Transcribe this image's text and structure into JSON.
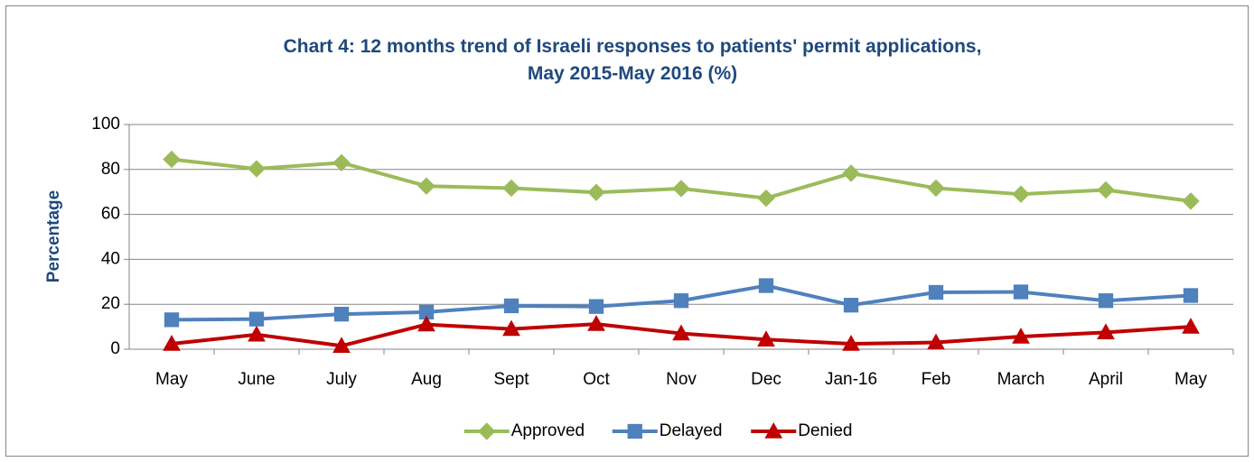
{
  "chart_data": {
    "type": "line",
    "title": "Chart 4: 12 months trend of Israeli responses to patients' permit applications, May 2015-May 2016 (%)",
    "y_label": "Percentage",
    "categories": [
      "May",
      "June",
      "July",
      "Aug",
      "Sept",
      "Oct",
      "Nov",
      "Dec",
      "Jan-16",
      "Feb",
      "March",
      "April",
      "May"
    ],
    "series": [
      {
        "name": "Approved",
        "color": "#9bbb59",
        "marker": "diamond",
        "values": [
          84.5,
          80.3,
          83,
          72.6,
          71.7,
          69.8,
          71.5,
          67.2,
          78.3,
          71.7,
          69,
          70.9,
          65.9
        ]
      },
      {
        "name": "Delayed",
        "color": "#4f81bd",
        "marker": "square",
        "values": [
          13.1,
          13.4,
          15.6,
          16.5,
          19.3,
          19,
          21.6,
          28.3,
          19.6,
          25.3,
          25.5,
          21.6,
          23.9
        ]
      },
      {
        "name": "Denied",
        "color": "#c00000",
        "marker": "triangle",
        "values": [
          2.4,
          6.5,
          1.5,
          11,
          9,
          11.2,
          7,
          4.3,
          2.4,
          3,
          5.6,
          7.5,
          10
        ]
      }
    ],
    "ylim": [
      0,
      100
    ],
    "yticks": [
      0,
      20,
      40,
      60,
      80,
      100
    ],
    "grid": true,
    "legend": "bottom"
  }
}
